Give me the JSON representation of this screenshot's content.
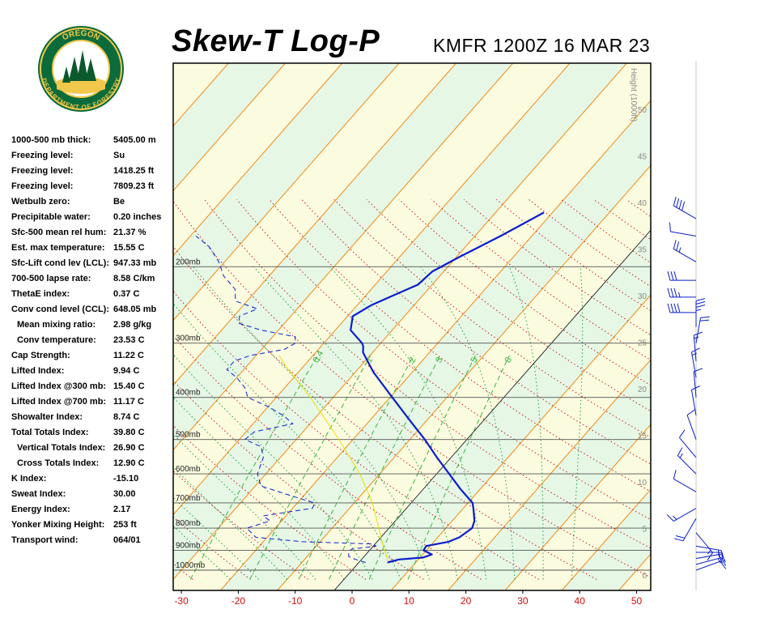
{
  "header": {
    "title": "Skew-T Log-P",
    "subtitle": "KMFR 1200Z 16 MAR 23"
  },
  "logo": {
    "top_text": "OREGON",
    "bottom_text": "DEPARTMENT OF FORESTRY",
    "colors": {
      "ring": "#0b6b3a",
      "inner": "#f2c84b",
      "tree": "#0b5a2e"
    }
  },
  "indices": [
    {
      "label": "1000-500 mb thick:",
      "value": "5405.00 m",
      "indent": false
    },
    {
      "label": "Freezing level:",
      "value": "Su",
      "indent": false
    },
    {
      "label": "Freezing level:",
      "value": "1418.25 ft",
      "indent": false
    },
    {
      "label": "Freezing level:",
      "value": "7809.23 ft",
      "indent": false
    },
    {
      "label": "Wetbulb zero:",
      "value": "Be",
      "indent": false
    },
    {
      "label": "Precipitable water:",
      "value": "0.20 inches",
      "indent": false
    },
    {
      "label": "Sfc-500 mean rel hum:",
      "value": "21.37 %",
      "indent": false
    },
    {
      "label": "Est. max temperature:",
      "value": "15.55 C",
      "indent": false
    },
    {
      "label": "Sfc-Lift cond lev (LCL):",
      "value": "947.33 mb",
      "indent": false
    },
    {
      "label": "700-500 lapse rate:",
      "value": "8.58 C/km",
      "indent": false
    },
    {
      "label": "ThetaE index:",
      "value": "0.37 C",
      "indent": false
    },
    {
      "label": "Conv cond level (CCL):",
      "value": "648.05 mb",
      "indent": false
    },
    {
      "label": "Mean mixing ratio:",
      "value": "2.98 g/kg",
      "indent": true
    },
    {
      "label": "Conv temperature:",
      "value": "23.53 C",
      "indent": true
    },
    {
      "label": "Cap Strength:",
      "value": "11.22 C",
      "indent": false
    },
    {
      "label": "Lifted Index:",
      "value": "9.94 C",
      "indent": false
    },
    {
      "label": "Lifted Index @300 mb:",
      "value": "15.40 C",
      "indent": false
    },
    {
      "label": "Lifted Index @700 mb:",
      "value": "11.17 C",
      "indent": false
    },
    {
      "label": "Showalter Index:",
      "value": "8.74 C",
      "indent": false
    },
    {
      "label": "Total Totals Index:",
      "value": "39.80 C",
      "indent": false
    },
    {
      "label": "Vertical Totals Index:",
      "value": "26.90 C",
      "indent": true
    },
    {
      "label": "Cross Totals Index:",
      "value": "12.90 C",
      "indent": true
    },
    {
      "label": "K Index:",
      "value": "-15.10",
      "indent": false
    },
    {
      "label": "Sweat Index:",
      "value": "30.00",
      "indent": false
    },
    {
      "label": "Energy Index:",
      "value": "2.17",
      "indent": false
    },
    {
      "label": "Yonker Mixing Height:",
      "value": "253 ft",
      "indent": false
    },
    {
      "label": "Transport wind:",
      "value": "064/01",
      "indent": false
    }
  ],
  "chart_data": {
    "type": "line",
    "x_ticks": [
      -30,
      -20,
      -10,
      0,
      10,
      20,
      30,
      40,
      50
    ],
    "xlim": [
      -33,
      53
    ],
    "pressure_levels": [
      {
        "p": 200,
        "label": "200mb"
      },
      {
        "p": 300,
        "label": "300mb"
      },
      {
        "p": 400,
        "label": "400mb"
      },
      {
        "p": 500,
        "label": "500mb"
      },
      {
        "p": 600,
        "label": "600mb"
      },
      {
        "p": 700,
        "label": "700mb"
      },
      {
        "p": 800,
        "label": "800mb"
      },
      {
        "p": 900,
        "label": "900mb"
      },
      {
        "p": 1000,
        "label": "1000mb"
      }
    ],
    "height_axis_label": "Height (1000ft)",
    "height_ticks": [
      0,
      5,
      10,
      15,
      20,
      25,
      30,
      35,
      40,
      45,
      50
    ],
    "mixing_ratio_labels": [
      "0.4",
      "1",
      "2",
      "3",
      "5",
      "8"
    ],
    "series": [
      {
        "color": "#0a1ecc",
        "style": "solid",
        "values": [
          {
            "p": 960,
            "t": 5
          },
          {
            "p": 945,
            "t": 6.6
          },
          {
            "p": 935,
            "t": 10.5
          },
          {
            "p": 920,
            "t": 11.6
          },
          {
            "p": 900,
            "t": 9.5
          },
          {
            "p": 880,
            "t": 9.3
          },
          {
            "p": 860,
            "t": 12.6
          },
          {
            "p": 840,
            "t": 13.8
          },
          {
            "p": 800,
            "t": 14.6
          },
          {
            "p": 770,
            "t": 13.9
          },
          {
            "p": 730,
            "t": 12.2
          },
          {
            "p": 700,
            "t": 10.8
          },
          {
            "p": 650,
            "t": 6.5
          },
          {
            "p": 600,
            "t": 2.2
          },
          {
            "p": 550,
            "t": -2.5
          },
          {
            "p": 500,
            "t": -7.4
          },
          {
            "p": 450,
            "t": -13.2
          },
          {
            "p": 400,
            "t": -19.6
          },
          {
            "p": 350,
            "t": -26.8
          },
          {
            "p": 315,
            "t": -31.7
          },
          {
            "p": 305,
            "t": -32.6
          },
          {
            "p": 300,
            "t": -33.3
          },
          {
            "p": 280,
            "t": -37.3
          },
          {
            "p": 260,
            "t": -39.1
          },
          {
            "p": 245,
            "t": -37.5
          },
          {
            "p": 230,
            "t": -34.6
          },
          {
            "p": 220,
            "t": -32.5
          },
          {
            "p": 205,
            "t": -32
          },
          {
            "p": 190,
            "t": -29.5
          },
          {
            "p": 170,
            "t": -25.5
          },
          {
            "p": 150,
            "t": -21.5
          }
        ]
      },
      {
        "color": "#0a1ecc",
        "style": "dashed",
        "values": [
          {
            "p": 960,
            "t": 1.2
          },
          {
            "p": 950,
            "t": -0.3
          },
          {
            "p": 940,
            "t": -1.6
          },
          {
            "p": 930,
            "t": -2.7
          },
          {
            "p": 915,
            "t": -3.2
          },
          {
            "p": 895,
            "t": -3.4
          },
          {
            "p": 880,
            "t": 0.5
          },
          {
            "p": 870,
            "t": -0.5
          },
          {
            "p": 860,
            "t": -13
          },
          {
            "p": 840,
            "t": -22
          },
          {
            "p": 800,
            "t": -25
          },
          {
            "p": 770,
            "t": -22
          },
          {
            "p": 750,
            "t": -24
          },
          {
            "p": 720,
            "t": -16.5
          },
          {
            "p": 700,
            "t": -17
          },
          {
            "p": 680,
            "t": -21
          },
          {
            "p": 640,
            "t": -29
          },
          {
            "p": 600,
            "t": -31.5
          },
          {
            "p": 550,
            "t": -33
          },
          {
            "p": 520,
            "t": -35
          },
          {
            "p": 500,
            "t": -39
          },
          {
            "p": 480,
            "t": -38.5
          },
          {
            "p": 460,
            "t": -33
          },
          {
            "p": 440,
            "t": -36
          },
          {
            "p": 420,
            "t": -40
          },
          {
            "p": 400,
            "t": -45
          },
          {
            "p": 380,
            "t": -47
          },
          {
            "p": 360,
            "t": -50
          },
          {
            "p": 345,
            "t": -53
          },
          {
            "p": 330,
            "t": -53
          },
          {
            "p": 320,
            "t": -51
          },
          {
            "p": 310,
            "t": -46
          },
          {
            "p": 300,
            "t": -45
          },
          {
            "p": 290,
            "t": -46
          },
          {
            "p": 280,
            "t": -53
          },
          {
            "p": 270,
            "t": -58
          },
          {
            "p": 260,
            "t": -59
          },
          {
            "p": 250,
            "t": -57
          },
          {
            "p": 240,
            "t": -62
          },
          {
            "p": 225,
            "t": -64
          },
          {
            "p": 210,
            "t": -68
          },
          {
            "p": 195,
            "t": -71
          },
          {
            "p": 180,
            "t": -75
          },
          {
            "p": 170,
            "t": -79
          }
        ]
      },
      {
        "color": "#e8e000",
        "style": "solid",
        "values": [
          {
            "p": 960,
            "t": 5
          },
          {
            "p": 947,
            "t": 4.7
          },
          {
            "p": 900,
            "t": 2.6
          },
          {
            "p": 800,
            "t": -1.8
          },
          {
            "p": 700,
            "t": -6.8
          },
          {
            "p": 600,
            "t": -13.5
          },
          {
            "p": 500,
            "t": -22.5
          },
          {
            "p": 400,
            "t": -34
          },
          {
            "p": 340,
            "t": -43
          },
          {
            "p": 320,
            "t": -46
          }
        ]
      }
    ],
    "wind_barbs": [
      {
        "p": 1000,
        "dir": 70,
        "spd": 10
      },
      {
        "p": 970,
        "dir": 75,
        "spd": 15
      },
      {
        "p": 940,
        "dir": 80,
        "spd": 20
      },
      {
        "p": 910,
        "dir": 90,
        "spd": 20
      },
      {
        "p": 880,
        "dir": 100,
        "spd": 15
      },
      {
        "p": 820,
        "dir": 140,
        "spd": 15
      },
      {
        "p": 760,
        "dir": 210,
        "spd": 20
      },
      {
        "p": 720,
        "dir": 240,
        "spd": 15
      },
      {
        "p": 660,
        "dir": 300,
        "spd": 10
      },
      {
        "p": 600,
        "dir": 315,
        "spd": 15
      },
      {
        "p": 550,
        "dir": 320,
        "spd": 10
      },
      {
        "p": 500,
        "dir": 340,
        "spd": 10
      },
      {
        "p": 440,
        "dir": 350,
        "spd": 10
      },
      {
        "p": 400,
        "dir": 355,
        "spd": 10
      },
      {
        "p": 360,
        "dir": 350,
        "spd": 15
      },
      {
        "p": 330,
        "dir": 355,
        "spd": 15
      },
      {
        "p": 300,
        "dir": 10,
        "spd": 20
      },
      {
        "p": 275,
        "dir": 0,
        "spd": 35
      },
      {
        "p": 255,
        "dir": 270,
        "spd": 40
      },
      {
        "p": 235,
        "dir": 270,
        "spd": 35
      },
      {
        "p": 215,
        "dir": 270,
        "spd": 30
      },
      {
        "p": 195,
        "dir": 300,
        "spd": 25
      },
      {
        "p": 170,
        "dir": 280,
        "spd": 10
      },
      {
        "p": 155,
        "dir": 300,
        "spd": 40
      }
    ]
  }
}
